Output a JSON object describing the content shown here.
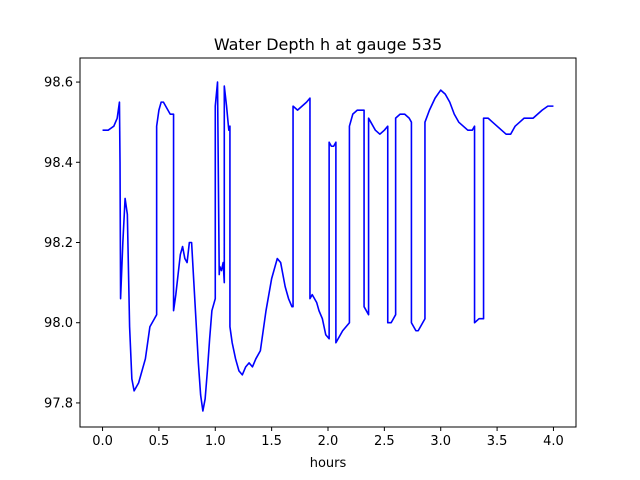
{
  "chart_data": {
    "type": "line",
    "title": "Water Depth h at gauge 535",
    "xlabel": "hours",
    "ylabel": "",
    "xlim": [
      -0.2,
      4.2
    ],
    "ylim": [
      97.74,
      98.66
    ],
    "xticks": [
      0.0,
      0.5,
      1.0,
      1.5,
      2.0,
      2.5,
      3.0,
      3.5,
      4.0
    ],
    "xtick_labels": [
      "0.0",
      "0.5",
      "1.0",
      "1.5",
      "2.0",
      "2.5",
      "3.0",
      "3.5",
      "4.0"
    ],
    "yticks": [
      97.8,
      98.0,
      98.2,
      98.4,
      98.6
    ],
    "ytick_labels": [
      "97.8",
      "98.0",
      "98.2",
      "98.4",
      "98.6"
    ],
    "grid": false,
    "line_color": "#0000ff",
    "series": [
      {
        "x": [
          0.0,
          0.05,
          0.1,
          0.13,
          0.15,
          0.155,
          0.16,
          0.18,
          0.2,
          0.22,
          0.24,
          0.26,
          0.28,
          0.3,
          0.32,
          0.34,
          0.36,
          0.38,
          0.4,
          0.42,
          0.44,
          0.46,
          0.48,
          0.48,
          0.5,
          0.52,
          0.54,
          0.56,
          0.58,
          0.6,
          0.63,
          0.63,
          0.65,
          0.67,
          0.69,
          0.71,
          0.73,
          0.75,
          0.77,
          0.79,
          0.81,
          0.83,
          0.85,
          0.87,
          0.89,
          0.91,
          0.93,
          0.95,
          0.97,
          0.99,
          1.0,
          1.0,
          1.02,
          1.035,
          1.04,
          1.055,
          1.07,
          1.08,
          1.08,
          1.1,
          1.12,
          1.13,
          1.13,
          1.15,
          1.18,
          1.21,
          1.24,
          1.27,
          1.3,
          1.33,
          1.36,
          1.4,
          1.45,
          1.5,
          1.55,
          1.58,
          1.6,
          1.62,
          1.65,
          1.68,
          1.69,
          1.69,
          1.73,
          1.77,
          1.81,
          1.84,
          1.84,
          1.86,
          1.88,
          1.9,
          1.92,
          1.95,
          1.98,
          2.01,
          2.01,
          2.03,
          2.05,
          2.07,
          2.07,
          2.09,
          2.11,
          2.13,
          2.16,
          2.19,
          2.19,
          2.22,
          2.26,
          2.3,
          2.32,
          2.32,
          2.34,
          2.36,
          2.36,
          2.38,
          2.42,
          2.46,
          2.5,
          2.53,
          2.53,
          2.56,
          2.58,
          2.6,
          2.6,
          2.64,
          2.68,
          2.72,
          2.74,
          2.74,
          2.76,
          2.78,
          2.8,
          2.82,
          2.84,
          2.86,
          2.86,
          2.9,
          2.95,
          3.0,
          3.04,
          3.08,
          3.12,
          3.16,
          3.2,
          3.24,
          3.28,
          3.3,
          3.3,
          3.34,
          3.38,
          3.38,
          3.42,
          3.46,
          3.5,
          3.54,
          3.58,
          3.62,
          3.66,
          3.7,
          3.74,
          3.78,
          3.82,
          3.86,
          3.9,
          3.95,
          4.0
        ],
        "y": [
          98.48,
          98.48,
          98.49,
          98.51,
          98.55,
          98.4,
          98.06,
          98.2,
          98.31,
          98.27,
          97.99,
          97.86,
          97.83,
          97.84,
          97.85,
          97.87,
          97.89,
          97.91,
          97.95,
          97.99,
          98.0,
          98.01,
          98.02,
          98.49,
          98.53,
          98.55,
          98.55,
          98.54,
          98.53,
          98.52,
          98.52,
          98.03,
          98.07,
          98.12,
          98.17,
          98.19,
          98.16,
          98.15,
          98.2,
          98.2,
          98.1,
          98.0,
          97.9,
          97.82,
          97.78,
          97.81,
          97.88,
          97.96,
          98.03,
          98.05,
          98.06,
          98.54,
          98.6,
          98.12,
          98.14,
          98.13,
          98.15,
          98.1,
          98.59,
          98.54,
          98.48,
          98.49,
          97.99,
          97.95,
          97.91,
          97.88,
          97.87,
          97.89,
          97.9,
          97.89,
          97.91,
          97.93,
          98.03,
          98.11,
          98.16,
          98.15,
          98.12,
          98.09,
          98.06,
          98.04,
          98.04,
          98.54,
          98.53,
          98.54,
          98.55,
          98.56,
          98.06,
          98.07,
          98.06,
          98.05,
          98.03,
          98.01,
          97.97,
          97.96,
          98.45,
          98.44,
          98.44,
          98.45,
          97.95,
          97.96,
          97.97,
          97.98,
          97.99,
          98.0,
          98.49,
          98.52,
          98.53,
          98.53,
          98.53,
          98.04,
          98.03,
          98.02,
          98.51,
          98.5,
          98.48,
          98.47,
          98.48,
          98.49,
          98.0,
          98.0,
          98.01,
          98.02,
          98.51,
          98.52,
          98.52,
          98.51,
          98.5,
          98.0,
          97.99,
          97.98,
          97.98,
          97.99,
          98.0,
          98.01,
          98.5,
          98.53,
          98.56,
          98.58,
          98.57,
          98.55,
          98.52,
          98.5,
          98.49,
          98.48,
          98.48,
          98.49,
          98.0,
          98.01,
          98.01,
          98.51,
          98.51,
          98.5,
          98.49,
          98.48,
          98.47,
          98.47,
          98.49,
          98.5,
          98.51,
          98.51,
          98.51,
          98.52,
          98.53,
          98.54,
          98.54
        ]
      }
    ]
  }
}
